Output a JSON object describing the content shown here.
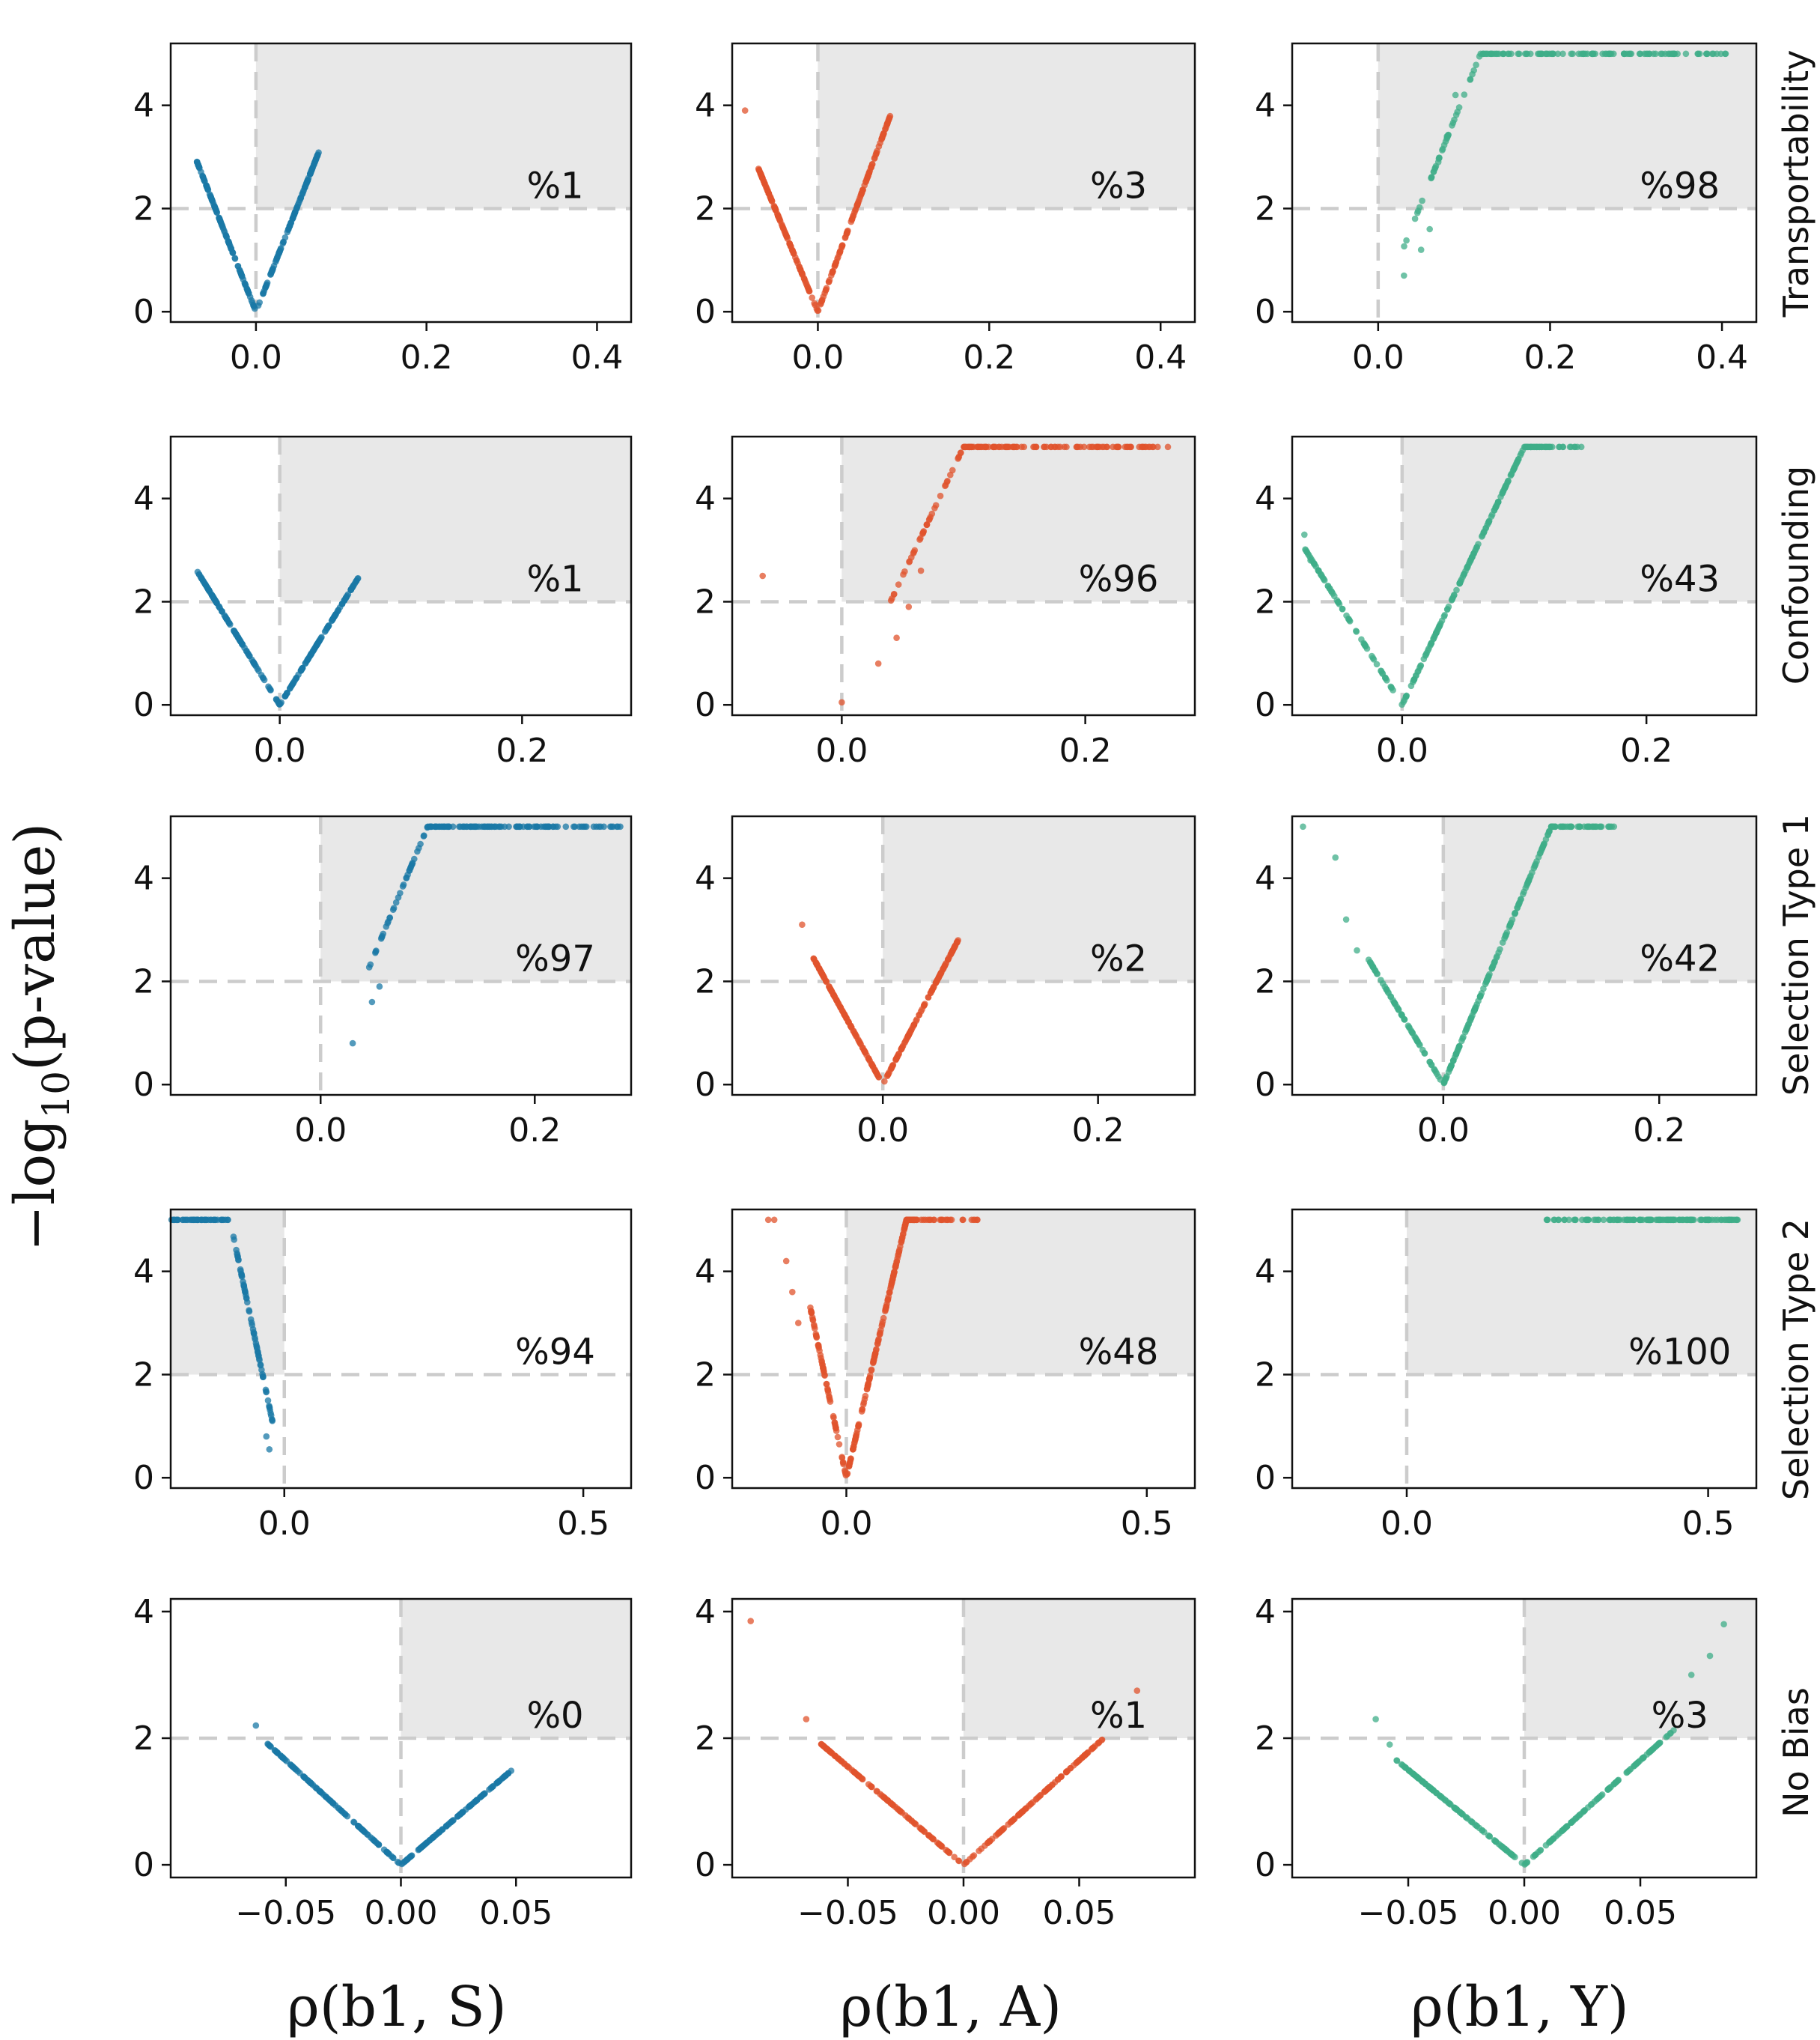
{
  "chart_data": {
    "type": "scatter",
    "y_axis_label": "−log",
    "y_axis_label_sub": "10",
    "y_axis_label_tail": "(p-value)",
    "column_labels": [
      "ρ(b1, S)",
      "ρ(b1, A)",
      "ρ(b1, Y)"
    ],
    "row_labels": [
      "Transportability",
      "Confounding",
      "Selection Type 1",
      "Selection Type 2",
      "No Bias"
    ],
    "colors": {
      "S": "#1a78a6",
      "A": "#e0532c",
      "Y": "#3fae88",
      "shade": "#e8e8e8",
      "reference": "#cccccc"
    },
    "threshold": 2,
    "panels": [
      {
        "row": 0,
        "col": 0,
        "percent": "%1",
        "xlim": [
          -0.1,
          0.44
        ],
        "ylim": [
          -0.2,
          5.2
        ],
        "xticks": [
          "0.0",
          "0.2",
          "0.4"
        ],
        "yticks": [
          "0",
          "2",
          "4"
        ],
        "region": "right",
        "pattern": "v",
        "slopeL": 42,
        "slopeR": 42,
        "xmin": -0.07,
        "xmax": 0.075,
        "extra": []
      },
      {
        "row": 0,
        "col": 1,
        "percent": "%3",
        "xlim": [
          -0.1,
          0.44
        ],
        "ylim": [
          -0.2,
          5.2
        ],
        "xticks": [
          "0.0",
          "0.2",
          "0.4"
        ],
        "yticks": [
          "0",
          "2",
          "4"
        ],
        "region": "right",
        "pattern": "v",
        "slopeL": 40,
        "slopeR": 45,
        "xmin": -0.07,
        "xmax": 0.085,
        "extra": [
          [
            -0.085,
            3.9
          ]
        ]
      },
      {
        "row": 0,
        "col": 2,
        "percent": "%98",
        "xlim": [
          -0.1,
          0.44
        ],
        "ylim": [
          -0.2,
          5.2
        ],
        "xticks": [
          "0.0",
          "0.2",
          "0.4"
        ],
        "yticks": [
          "0",
          "2",
          "4"
        ],
        "region": "right",
        "pattern": "sat",
        "slope": 42,
        "cap": 5,
        "xstart": 0.03,
        "xend": 0.41,
        "extra": [
          [
            0.03,
            0.7
          ],
          [
            0.05,
            1.2
          ],
          [
            0.06,
            1.6
          ],
          [
            0.07,
            2.9
          ],
          [
            0.08,
            3.4
          ],
          [
            0.09,
            4.2
          ]
        ]
      },
      {
        "row": 1,
        "col": 0,
        "percent": "%1",
        "xlim": [
          -0.09,
          0.29
        ],
        "ylim": [
          -0.2,
          5.2
        ],
        "xticks": [
          "0.0",
          "0.2"
        ],
        "yticks": [
          "0",
          "2",
          "4"
        ],
        "region": "right",
        "pattern": "v",
        "slopeL": 38,
        "slopeR": 38,
        "xmin": -0.068,
        "xmax": 0.065,
        "extra": []
      },
      {
        "row": 1,
        "col": 1,
        "percent": "%96",
        "xlim": [
          -0.09,
          0.29
        ],
        "ylim": [
          -0.2,
          5.2
        ],
        "xticks": [
          "0.0",
          "0.2"
        ],
        "yticks": [
          "0",
          "2",
          "4"
        ],
        "region": "right",
        "pattern": "sat",
        "slope": 50,
        "cap": 5,
        "xstart": 0.04,
        "xend": 0.27,
        "extra": [
          [
            -0.065,
            2.5
          ],
          [
            0.0,
            0.05
          ],
          [
            0.03,
            0.8
          ],
          [
            0.045,
            1.3
          ],
          [
            0.055,
            1.9
          ],
          [
            0.065,
            2.6
          ]
        ]
      },
      {
        "row": 1,
        "col": 2,
        "percent": "%43",
        "xlim": [
          -0.09,
          0.29
        ],
        "ylim": [
          -0.2,
          5.2
        ],
        "xticks": [
          "0.0",
          "0.2"
        ],
        "yticks": [
          "0",
          "2",
          "4"
        ],
        "region": "right",
        "pattern": "vsat",
        "slopeL": 38,
        "slopeR": 50,
        "cap": 5,
        "xmin": -0.08,
        "xend": 0.15,
        "extra": [
          [
            -0.08,
            3.3
          ],
          [
            -0.075,
            2.8
          ]
        ]
      },
      {
        "row": 2,
        "col": 0,
        "percent": "%97",
        "xlim": [
          -0.14,
          0.29
        ],
        "ylim": [
          -0.2,
          5.2
        ],
        "xticks": [
          "0.0",
          "0.2"
        ],
        "yticks": [
          "0",
          "2",
          "4"
        ],
        "region": "right",
        "pattern": "sat",
        "slope": 50,
        "cap": 5,
        "xstart": 0.045,
        "xend": 0.28,
        "extra": [
          [
            0.03,
            0.8
          ],
          [
            0.048,
            1.6
          ],
          [
            0.055,
            1.9
          ]
        ]
      },
      {
        "row": 2,
        "col": 1,
        "percent": "%2",
        "xlim": [
          -0.14,
          0.29
        ],
        "ylim": [
          -0.2,
          5.2
        ],
        "xticks": [
          "0.0",
          "0.2"
        ],
        "yticks": [
          "0",
          "2",
          "4"
        ],
        "region": "right",
        "pattern": "v",
        "slopeL": 38,
        "slopeR": 40,
        "xmin": -0.065,
        "xmax": 0.07,
        "extra": [
          [
            -0.075,
            3.1
          ]
        ]
      },
      {
        "row": 2,
        "col": 2,
        "percent": "%42",
        "xlim": [
          -0.14,
          0.29
        ],
        "ylim": [
          -0.2,
          5.2
        ],
        "xticks": [
          "0.0",
          "0.2"
        ],
        "yticks": [
          "0",
          "2",
          "4"
        ],
        "region": "right",
        "pattern": "vsat",
        "slopeL": 35,
        "slopeR": 50,
        "cap": 5,
        "xmin": -0.07,
        "xend": 0.16,
        "extra": [
          [
            -0.13,
            5.0
          ],
          [
            -0.1,
            4.4
          ],
          [
            -0.09,
            3.2
          ],
          [
            -0.08,
            2.6
          ]
        ]
      },
      {
        "row": 3,
        "col": 0,
        "percent": "%94",
        "xlim": [
          -0.19,
          0.58
        ],
        "ylim": [
          -0.2,
          5.2
        ],
        "xticks": [
          "0.0",
          "0.5"
        ],
        "yticks": [
          "0",
          "2",
          "4"
        ],
        "region": "left",
        "pattern": "leftsat",
        "slope": 55,
        "cap": 5,
        "xstart": -0.19,
        "xend": -0.02,
        "extra": [
          [
            -0.025,
            0.55
          ],
          [
            -0.03,
            0.8
          ]
        ]
      },
      {
        "row": 3,
        "col": 1,
        "percent": "%48",
        "xlim": [
          -0.19,
          0.58
        ],
        "ylim": [
          -0.2,
          5.2
        ],
        "xticks": [
          "0.0",
          "0.5"
        ],
        "yticks": [
          "0",
          "2",
          "4"
        ],
        "region": "right",
        "pattern": "vsat",
        "slopeL": 55,
        "slopeR": 50,
        "cap": 5,
        "xmin": -0.06,
        "xend": 0.22,
        "extra": [
          [
            -0.13,
            5.0
          ],
          [
            -0.12,
            5.0
          ],
          [
            -0.1,
            4.2
          ],
          [
            -0.09,
            3.6
          ],
          [
            -0.08,
            3.0
          ]
        ]
      },
      {
        "row": 3,
        "col": 2,
        "percent": "%100",
        "xlim": [
          -0.19,
          0.58
        ],
        "ylim": [
          -0.2,
          5.2
        ],
        "xticks": [
          "0.0",
          "0.5"
        ],
        "yticks": [
          "0",
          "2",
          "4"
        ],
        "region": "right",
        "pattern": "flat",
        "cap": 5,
        "xstart": 0.23,
        "xend": 0.55,
        "extra": []
      },
      {
        "row": 4,
        "col": 0,
        "percent": "%0",
        "xlim": [
          -0.1,
          0.1
        ],
        "ylim": [
          -0.2,
          4.2
        ],
        "xticks": [
          "−0.05",
          "0.00",
          "0.05"
        ],
        "xtickvals": [
          -0.05,
          0.0,
          0.05
        ],
        "yticks": [
          "0",
          "2",
          "4"
        ],
        "region": "right",
        "pattern": "v",
        "slopeL": 33,
        "slopeR": 31,
        "xmin": -0.058,
        "xmax": 0.048,
        "extra": [
          [
            -0.063,
            2.2
          ]
        ]
      },
      {
        "row": 4,
        "col": 1,
        "percent": "%1",
        "xlim": [
          -0.1,
          0.1
        ],
        "ylim": [
          -0.2,
          4.2
        ],
        "xticks": [
          "−0.05",
          "0.00",
          "0.05"
        ],
        "xtickvals": [
          -0.05,
          0.0,
          0.05
        ],
        "yticks": [
          "0",
          "2",
          "4"
        ],
        "region": "right",
        "pattern": "v",
        "slopeL": 31,
        "slopeR": 33,
        "xmin": -0.062,
        "xmax": 0.06,
        "extra": [
          [
            -0.092,
            3.85
          ],
          [
            -0.068,
            2.3
          ],
          [
            0.075,
            2.75
          ]
        ]
      },
      {
        "row": 4,
        "col": 2,
        "percent": "%3",
        "xlim": [
          -0.1,
          0.1
        ],
        "ylim": [
          -0.2,
          4.2
        ],
        "xticks": [
          "−0.05",
          "0.00",
          "0.05"
        ],
        "xtickvals": [
          -0.05,
          0.0,
          0.05
        ],
        "yticks": [
          "0",
          "2",
          "4"
        ],
        "region": "right",
        "pattern": "v",
        "slopeL": 30,
        "slopeR": 33,
        "xmin": -0.055,
        "xmax": 0.065,
        "extra": [
          [
            -0.064,
            2.3
          ],
          [
            -0.058,
            1.9
          ],
          [
            0.072,
            3.0
          ],
          [
            0.08,
            3.3
          ],
          [
            0.086,
            3.8
          ]
        ]
      }
    ]
  }
}
